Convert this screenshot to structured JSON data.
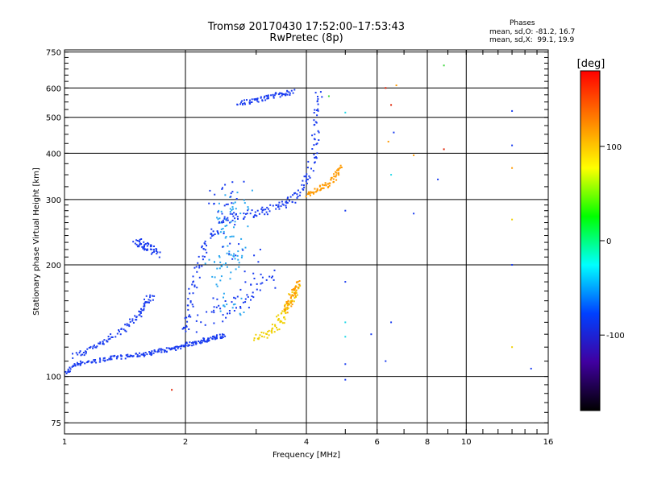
{
  "header": {
    "title_line1": "Tromsø 20170430 17:52:00–17:53:43",
    "title_line2": "RwPretec (8p)",
    "phases_title": "Phases",
    "phases_o": "mean, sd,O: -81.2, 16.7",
    "phases_x": "mean, sd,X:  99.1, 19.9"
  },
  "colors": {
    "blue": "#1a3cf0",
    "lightblue": "#2aa8f0",
    "cyan": "#20d8e8",
    "orange": "#ff9a00",
    "yellow": "#f0d000",
    "red": "#e02000",
    "green": "#40d840"
  },
  "chart_data": {
    "type": "scatter",
    "xlabel": "Frequency [MHz]",
    "ylabel": "Stationary phase Virtual Height [km]",
    "x_scale": "log",
    "y_scale": "log",
    "xlim": [
      1,
      16
    ],
    "ylim": [
      70,
      760
    ],
    "x_ticks": [
      1,
      2,
      4,
      6,
      8,
      10,
      16
    ],
    "x_tick_labels": [
      "1",
      "2",
      "4",
      "6",
      "8",
      "10",
      "16"
    ],
    "y_ticks": [
      75,
      100,
      200,
      300,
      400,
      500,
      600,
      750
    ],
    "y_tick_labels": [
      "75",
      "100",
      "200",
      "300",
      "400",
      "500",
      "600",
      "750"
    ],
    "grid": true,
    "colorbar": {
      "label": "[deg]",
      "range": [
        -180,
        180
      ],
      "ticks": [
        100,
        0,
        -100
      ],
      "tick_labels": [
        "100",
        "0",
        "-100"
      ],
      "gradient": [
        "#ff0000",
        "#ff8000",
        "#ffff00",
        "#00ff00",
        "#00ffff",
        "#0040ff",
        "#4000a0",
        "#000000"
      ]
    },
    "series": [
      {
        "color": "blue",
        "trace": [
          [
            1.0,
            101
          ],
          [
            1.05,
            107
          ],
          [
            1.1,
            109
          ],
          [
            1.2,
            110
          ],
          [
            1.3,
            112
          ],
          [
            1.4,
            113
          ],
          [
            1.5,
            114
          ],
          [
            1.6,
            115
          ],
          [
            1.7,
            117
          ],
          [
            1.8,
            118
          ],
          [
            1.9,
            119
          ],
          [
            2.0,
            122
          ],
          [
            2.1,
            123
          ],
          [
            2.2,
            125
          ],
          [
            2.3,
            126
          ],
          [
            2.4,
            128
          ],
          [
            2.5,
            129
          ]
        ],
        "spread": 3
      },
      {
        "color": "blue",
        "trace": [
          [
            1.05,
            113
          ],
          [
            1.15,
            118
          ],
          [
            1.25,
            124
          ],
          [
            1.35,
            130
          ],
          [
            1.45,
            140
          ],
          [
            1.55,
            148
          ],
          [
            1.6,
            158
          ],
          [
            1.65,
            166
          ]
        ],
        "spread": 5
      },
      {
        "color": "blue",
        "trace": [
          [
            1.5,
            230
          ],
          [
            1.55,
            228
          ],
          [
            1.6,
            225
          ],
          [
            1.65,
            220
          ],
          [
            1.7,
            214
          ]
        ],
        "spread": 6
      },
      {
        "color": "blue",
        "trace": [
          [
            2.0,
            130
          ],
          [
            2.05,
            150
          ],
          [
            2.1,
            180
          ],
          [
            2.2,
            210
          ],
          [
            2.3,
            240
          ],
          [
            2.5,
            265
          ],
          [
            2.7,
            272
          ],
          [
            3.0,
            276
          ],
          [
            3.2,
            282
          ],
          [
            3.5,
            290
          ],
          [
            3.7,
            300
          ],
          [
            3.9,
            320
          ],
          [
            4.1,
            360
          ],
          [
            4.2,
            420
          ],
          [
            4.25,
            500
          ],
          [
            4.3,
            600
          ]
        ],
        "spread": 6
      },
      {
        "color": "lightblue",
        "trace": [
          [
            2.3,
            190
          ],
          [
            2.5,
            200
          ],
          [
            2.7,
            215
          ],
          [
            2.4,
            250
          ],
          [
            2.6,
            280
          ],
          [
            2.8,
            300
          ],
          [
            2.5,
            160
          ],
          [
            2.7,
            150
          ]
        ],
        "spread": 18
      },
      {
        "color": "blue",
        "trace": [
          [
            2.2,
            140
          ],
          [
            2.4,
            150
          ],
          [
            2.8,
            160
          ],
          [
            3.0,
            170
          ],
          [
            3.2,
            185
          ],
          [
            2.6,
            230
          ],
          [
            2.4,
            300
          ],
          [
            2.7,
            320
          ]
        ],
        "spread": 20
      },
      {
        "color": "blue",
        "trace": [
          [
            2.7,
            545
          ],
          [
            2.9,
            550
          ],
          [
            3.1,
            560
          ],
          [
            3.3,
            570
          ],
          [
            3.5,
            578
          ],
          [
            3.7,
            590
          ]
        ],
        "spread": 4
      },
      {
        "color": "yellow",
        "trace": [
          [
            3.0,
            125
          ],
          [
            3.2,
            130
          ],
          [
            3.4,
            138
          ],
          [
            3.5,
            146
          ],
          [
            3.6,
            155
          ],
          [
            3.7,
            165
          ],
          [
            3.8,
            175
          ]
        ],
        "spread": 7
      },
      {
        "color": "orange",
        "trace": [
          [
            3.55,
            150
          ],
          [
            3.65,
            160
          ],
          [
            3.75,
            170
          ],
          [
            3.8,
            180
          ]
        ],
        "spread": 5
      },
      {
        "color": "orange",
        "trace": [
          [
            4.0,
            310
          ],
          [
            4.2,
            318
          ],
          [
            4.4,
            325
          ],
          [
            4.6,
            335
          ],
          [
            4.75,
            350
          ],
          [
            4.85,
            370
          ]
        ],
        "spread": 4
      }
    ],
    "points": [
      {
        "x": 1.85,
        "y": 92,
        "color": "red"
      },
      {
        "x": 4.55,
        "y": 570,
        "color": "green"
      },
      {
        "x": 5.0,
        "y": 98,
        "color": "blue"
      },
      {
        "x": 5.0,
        "y": 280,
        "color": "blue"
      },
      {
        "x": 5.0,
        "y": 180,
        "color": "blue"
      },
      {
        "x": 5.0,
        "y": 140,
        "color": "cyan"
      },
      {
        "x": 5.0,
        "y": 128,
        "color": "cyan"
      },
      {
        "x": 5.0,
        "y": 108,
        "color": "blue"
      },
      {
        "x": 5.0,
        "y": 515,
        "color": "cyan"
      },
      {
        "x": 5.8,
        "y": 130,
        "color": "blue"
      },
      {
        "x": 6.3,
        "y": 600,
        "color": "red"
      },
      {
        "x": 6.5,
        "y": 540,
        "color": "red"
      },
      {
        "x": 6.6,
        "y": 455,
        "color": "blue"
      },
      {
        "x": 6.4,
        "y": 430,
        "color": "orange"
      },
      {
        "x": 6.5,
        "y": 350,
        "color": "cyan"
      },
      {
        "x": 6.7,
        "y": 610,
        "color": "orange"
      },
      {
        "x": 6.3,
        "y": 110,
        "color": "blue"
      },
      {
        "x": 6.5,
        "y": 140,
        "color": "blue"
      },
      {
        "x": 7.4,
        "y": 395,
        "color": "orange"
      },
      {
        "x": 7.4,
        "y": 275,
        "color": "blue"
      },
      {
        "x": 8.5,
        "y": 340,
        "color": "blue"
      },
      {
        "x": 8.8,
        "y": 410,
        "color": "red"
      },
      {
        "x": 8.8,
        "y": 690,
        "color": "green"
      },
      {
        "x": 13.0,
        "y": 520,
        "color": "blue"
      },
      {
        "x": 13.0,
        "y": 420,
        "color": "blue"
      },
      {
        "x": 13.0,
        "y": 365,
        "color": "orange"
      },
      {
        "x": 13.0,
        "y": 265,
        "color": "yellow"
      },
      {
        "x": 13.0,
        "y": 200,
        "color": "blue"
      },
      {
        "x": 13.0,
        "y": 120,
        "color": "yellow"
      },
      {
        "x": 14.5,
        "y": 105,
        "color": "blue"
      }
    ]
  }
}
